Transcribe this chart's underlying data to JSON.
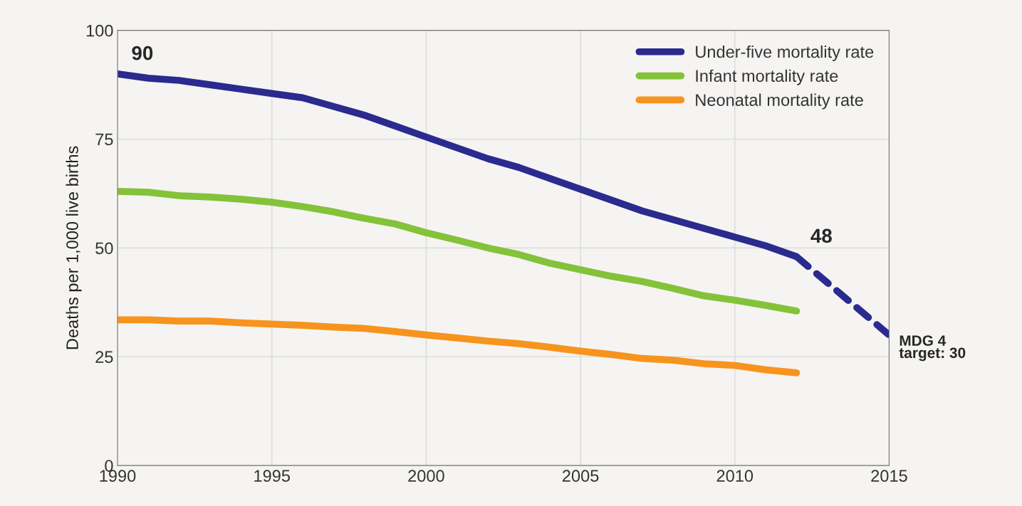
{
  "chart_data": {
    "type": "line",
    "ylabel": "Deaths per 1,000 live births",
    "x": [
      1990,
      1991,
      1992,
      1993,
      1994,
      1995,
      1996,
      1997,
      1998,
      1999,
      2000,
      2001,
      2002,
      2003,
      2004,
      2005,
      2006,
      2007,
      2008,
      2009,
      2010,
      2011,
      2012
    ],
    "xlim": [
      1990,
      2015
    ],
    "xticks": [
      1990,
      1995,
      2000,
      2005,
      2010,
      2015
    ],
    "ylim": [
      0,
      100
    ],
    "yticks": [
      0,
      25,
      50,
      75,
      100
    ],
    "grid": true,
    "legend": "top right",
    "line_style": "solid",
    "series": [
      {
        "name": "Under-five mortality rate",
        "color": "#2b2a8f",
        "values": [
          90,
          89,
          88.5,
          87.5,
          86.5,
          85.5,
          84.5,
          82.5,
          80.5,
          78,
          75.5,
          73,
          70.5,
          68.5,
          66,
          63.5,
          61,
          58.5,
          56.5,
          54.5,
          52.5,
          50.5,
          48
        ]
      },
      {
        "name": "Infant mortality rate",
        "color": "#84c23a",
        "values": [
          63,
          62.8,
          62,
          61.7,
          61.2,
          60.5,
          59.5,
          58.3,
          56.8,
          55.5,
          53.5,
          51.8,
          50,
          48.5,
          46.5,
          45,
          43.5,
          42.3,
          40.7,
          39,
          38,
          36.8,
          35.5
        ]
      },
      {
        "name": "Neonatal mortality rate",
        "color": "#f7941e",
        "values": [
          33.5,
          33.5,
          33.2,
          33.2,
          32.8,
          32.5,
          32.2,
          31.8,
          31.5,
          30.8,
          30,
          29.3,
          28.6,
          28,
          27.2,
          26.3,
          25.5,
          24.6,
          24.2,
          23.4,
          23,
          22,
          21.3
        ]
      },
      {
        "color": "#2b2a8f",
        "x": [
          2012,
          2015
        ],
        "values": [
          48,
          30
        ],
        "line_style": "dashed"
      }
    ],
    "annotations": [
      {
        "text": "90",
        "x": 1990,
        "y": 90
      },
      {
        "text": "48",
        "x": 2012,
        "y": 48
      },
      {
        "text": "MDG 4\ntarget: 30",
        "x": 2015,
        "y": 30
      }
    ]
  }
}
